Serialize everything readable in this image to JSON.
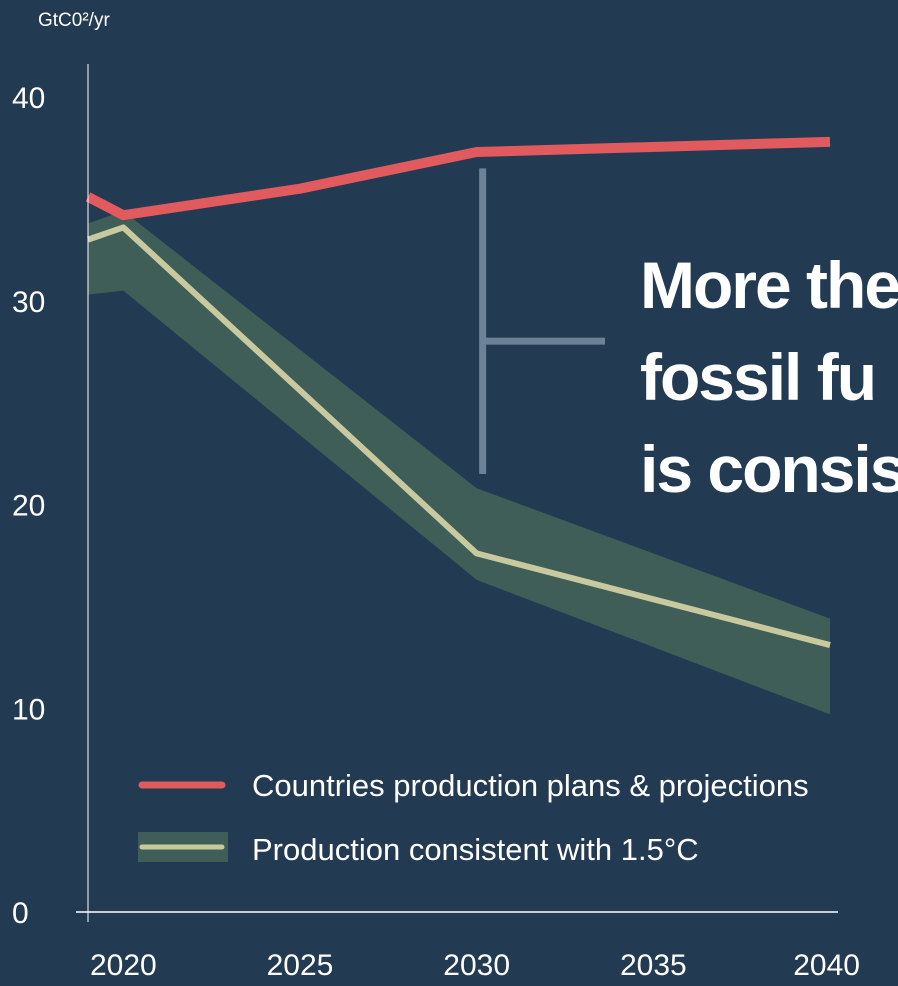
{
  "chart_data": {
    "type": "line",
    "ylabel": "GtC0²/yr",
    "y_ticks": [
      "0",
      "10",
      "20",
      "30",
      "40"
    ],
    "x_ticks": [
      "2020",
      "2025",
      "2030",
      "2035",
      "2040"
    ],
    "ylim": [
      0,
      40
    ],
    "xlim": [
      2019,
      2040
    ],
    "grid": false,
    "series": [
      {
        "name": "Countries production plans & projections",
        "color": "#e05a5e",
        "x": [
          2019,
          2020,
          2025,
          2030,
          2040
        ],
        "values": [
          35.1,
          34.2,
          35.5,
          37.3,
          37.8
        ]
      },
      {
        "name": "Production consistent with 1.5°C",
        "color": "#c9c9a0",
        "x": [
          2019,
          2020,
          2030,
          2040
        ],
        "values": [
          33.0,
          33.6,
          17.6,
          13.1
        ],
        "band": {
          "color": "#3f5e57",
          "x": [
            2019,
            2020,
            2030,
            2040
          ],
          "upper": [
            33.8,
            34.4,
            20.8,
            14.4
          ],
          "lower": [
            30.3,
            30.5,
            16.3,
            9.7
          ]
        }
      }
    ],
    "annotation": {
      "color": "#6c8296",
      "x": 2030,
      "from": 21.5,
      "to": 36.5,
      "lines": [
        "More the",
        "fossil fu",
        "is consis"
      ]
    },
    "legend": {
      "placement": "bottom-center",
      "entries": [
        "Countries production plans & projections",
        "Production consistent with 1.5°C"
      ]
    }
  }
}
